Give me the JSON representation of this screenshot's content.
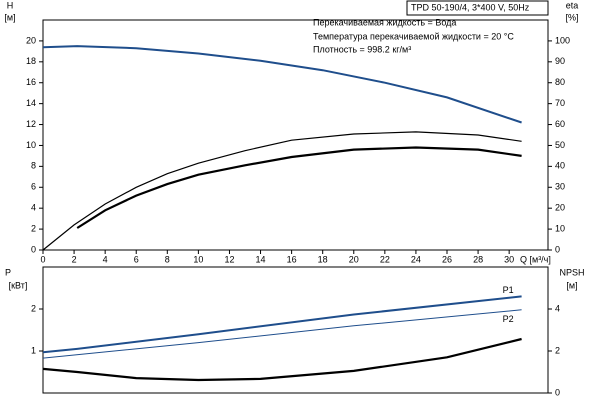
{
  "chart_data": [
    {
      "type": "line",
      "info_box": "TPD 50-190/4, 3*400 V, 50Hz",
      "annotations": [
        "Перекачиваемая жидкость = Вода",
        "Температура перекачиваемой жидкости = 20 °C",
        "Плотность = 998.2 кг/м³"
      ],
      "ylabel": "H",
      "yunit": "[м]",
      "y2label": "eta",
      "y2unit": "[%]",
      "xlabel": "Q [м³/ч]",
      "xlim": [
        0,
        32.5
      ],
      "xticks": [
        0,
        2,
        4,
        6,
        8,
        10,
        12,
        14,
        16,
        18,
        20,
        22,
        24,
        26,
        28,
        30
      ],
      "ylim": [
        0,
        22
      ],
      "yticks": [
        0,
        2,
        4,
        6,
        8,
        10,
        12,
        14,
        16,
        18,
        20
      ],
      "y2lim": [
        0,
        110
      ],
      "y2ticks": [
        0,
        10,
        20,
        30,
        40,
        50,
        60,
        70,
        80,
        90,
        100
      ],
      "series": [
        {
          "color": "#1f4e8c",
          "axis": "y",
          "x": [
            0,
            2.2,
            6,
            10,
            14,
            18,
            22,
            26,
            30.8
          ],
          "values": [
            19.4,
            19.5,
            19.3,
            18.8,
            18.1,
            17.2,
            16.0,
            14.6,
            12.2
          ]
        },
        {
          "color": "#000000",
          "axis": "y2",
          "x": [
            0,
            2,
            4,
            6,
            8,
            10,
            13,
            16,
            20,
            24,
            28,
            30.8
          ],
          "values": [
            0,
            12,
            22,
            30,
            36.5,
            41.5,
            47.5,
            52.5,
            55.5,
            56.5,
            55,
            52
          ]
        },
        {
          "color": "#000000",
          "axis": "y2",
          "x": [
            2.2,
            4,
            6,
            8,
            10,
            13,
            16,
            20,
            24,
            28,
            30.8
          ],
          "values": [
            10.5,
            19,
            26,
            31.5,
            36,
            40.5,
            44.5,
            48,
            49,
            48,
            45
          ]
        }
      ]
    },
    {
      "type": "line",
      "ylabel": "P",
      "yunit": "[кВт]",
      "y2label": "NPSH",
      "y2unit": "[м]",
      "xlim": [
        0,
        32.5
      ],
      "ylim": [
        0,
        3
      ],
      "yticks": [
        1,
        2
      ],
      "y2lim": [
        0,
        6
      ],
      "y2ticks": [
        0,
        2,
        4
      ],
      "series": [
        {
          "name": "P1",
          "color": "#1f4e8c",
          "axis": "y",
          "x": [
            0,
            2.2,
            10,
            20,
            30.8
          ],
          "values": [
            0.97,
            1.05,
            1.4,
            1.87,
            2.3
          ]
        },
        {
          "name": "P2",
          "color": "#1f4e8c",
          "axis": "y",
          "x": [
            0,
            10,
            20,
            30.8
          ],
          "values": [
            0.83,
            1.2,
            1.6,
            1.98
          ]
        },
        {
          "color": "#000000",
          "axis": "y2",
          "x": [
            0,
            2.2,
            6,
            10,
            14,
            20,
            26,
            30.8
          ],
          "values": [
            1.15,
            1.0,
            0.71,
            0.62,
            0.67,
            1.05,
            1.7,
            2.57
          ]
        }
      ]
    }
  ]
}
